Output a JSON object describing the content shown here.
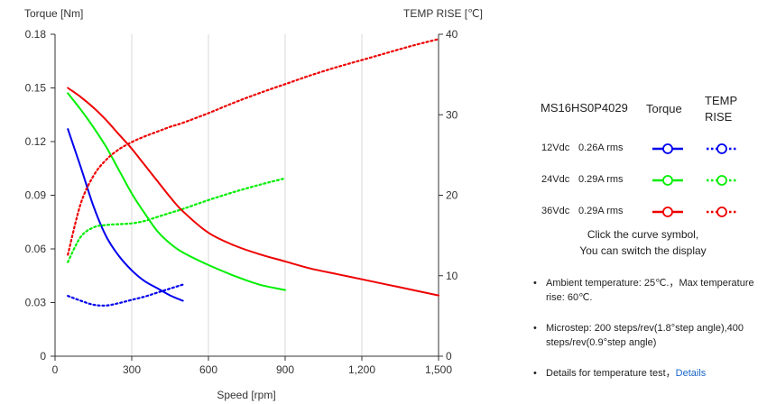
{
  "chart_data": {
    "type": "line",
    "y_left_label": "Torque  [Nm]",
    "y_right_label": "TEMP RISE [℃]",
    "x_label": "Speed [rpm]",
    "x_range": [
      0,
      1500
    ],
    "y_left_range": [
      0,
      0.18
    ],
    "y_right_range": [
      0,
      40
    ],
    "x_ticks": [
      0,
      300,
      600,
      900,
      1200,
      1500
    ],
    "x_tick_labels": [
      "0",
      "300",
      "600",
      "900",
      "1,200",
      "1,500"
    ],
    "y_left_ticks": [
      0,
      0.03,
      0.06,
      0.09,
      0.12,
      0.15,
      0.18
    ],
    "y_left_tick_labels": [
      "0",
      "0.03",
      "0.06",
      "0.09",
      "0.12",
      "0.15",
      "0.18"
    ],
    "y_right_ticks": [
      0,
      10,
      20,
      30,
      40
    ],
    "y_right_tick_labels": [
      "0",
      "10",
      "20",
      "30",
      "40"
    ],
    "grid": "vertical",
    "series": [
      {
        "name": "12Vdc Torque",
        "axis": "left",
        "style": "solid",
        "color": "#0000ee",
        "x": [
          50,
          100,
          150,
          200,
          250,
          300,
          350,
          400,
          450,
          500
        ],
        "y": [
          0.127,
          0.106,
          0.084,
          0.067,
          0.056,
          0.048,
          0.042,
          0.038,
          0.034,
          0.031
        ]
      },
      {
        "name": "12Vdc Temp Rise",
        "axis": "right",
        "style": "dotted",
        "color": "#0000ee",
        "x": [
          50,
          100,
          150,
          200,
          250,
          300,
          350,
          400,
          450,
          500
        ],
        "y": [
          7.5,
          6.9,
          6.4,
          6.3,
          6.6,
          7.0,
          7.4,
          7.9,
          8.4,
          8.9
        ]
      },
      {
        "name": "24Vdc Torque",
        "axis": "left",
        "style": "solid",
        "color": "#00ee00",
        "x": [
          50,
          100,
          150,
          200,
          250,
          300,
          350,
          400,
          450,
          500,
          600,
          700,
          800,
          900
        ],
        "y": [
          0.147,
          0.138,
          0.128,
          0.117,
          0.104,
          0.091,
          0.08,
          0.07,
          0.063,
          0.058,
          0.051,
          0.045,
          0.04,
          0.037
        ]
      },
      {
        "name": "24Vdc Temp Rise",
        "axis": "right",
        "style": "dotted",
        "color": "#00ee00",
        "x": [
          50,
          100,
          150,
          200,
          250,
          300,
          350,
          400,
          450,
          500,
          600,
          700,
          800,
          900
        ],
        "y": [
          11.7,
          14.8,
          16.0,
          16.3,
          16.4,
          16.5,
          16.8,
          17.3,
          17.8,
          18.3,
          19.4,
          20.4,
          21.3,
          22.1
        ]
      },
      {
        "name": "36Vdc Torque",
        "axis": "left",
        "style": "solid",
        "color": "#ee0000",
        "x": [
          50,
          100,
          150,
          200,
          250,
          300,
          350,
          400,
          450,
          500,
          600,
          700,
          800,
          900,
          1000,
          1100,
          1200,
          1300,
          1400,
          1500
        ],
        "y": [
          0.15,
          0.145,
          0.139,
          0.132,
          0.124,
          0.116,
          0.107,
          0.098,
          0.089,
          0.081,
          0.069,
          0.062,
          0.057,
          0.053,
          0.049,
          0.046,
          0.043,
          0.04,
          0.037,
          0.034
        ]
      },
      {
        "name": "36Vdc Temp Rise",
        "axis": "right",
        "style": "dotted",
        "color": "#ee0000",
        "x": [
          50,
          100,
          150,
          200,
          250,
          300,
          350,
          400,
          450,
          500,
          600,
          700,
          800,
          900,
          1000,
          1100,
          1200,
          1300,
          1400,
          1500
        ],
        "y": [
          12.6,
          18.9,
          22.4,
          24.4,
          25.7,
          26.6,
          27.3,
          27.9,
          28.5,
          29.0,
          30.2,
          31.5,
          32.7,
          33.8,
          34.9,
          35.9,
          36.8,
          37.7,
          38.6,
          39.4
        ]
      }
    ]
  },
  "legend": {
    "model": "MS16HS0P4029",
    "torque_header": "Torque",
    "temp_header_line1": "TEMP",
    "temp_header_line2": "RISE",
    "rows": [
      {
        "voltage": "12Vdc",
        "current": "0.26A rms",
        "color": "#0000ee"
      },
      {
        "voltage": "24Vdc",
        "current": "0.29A rms",
        "color": "#00ee00"
      },
      {
        "voltage": "36Vdc",
        "current": "0.29A rms",
        "color": "#ee0000"
      }
    ],
    "hint_line1": "Click the curve symbol,",
    "hint_line2": "You can switch the display"
  },
  "notes": {
    "ambient": "Ambient temperature: 25℃.，Max temperature rise: 60℃.",
    "microstep": "Microstep: 200 steps/rev(1.8°step angle),400 steps/rev(0.9°step angle)",
    "details_text": "Details for temperature test，",
    "details_link": "Details"
  }
}
